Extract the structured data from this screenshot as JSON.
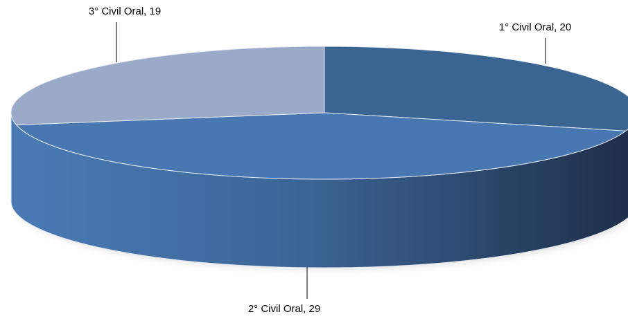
{
  "chart_data": {
    "type": "pie",
    "style": "3d",
    "title": "",
    "legend": "none",
    "categories": [
      "1° Civil Oral",
      "2° Civil Oral",
      "3° Civil Oral"
    ],
    "values": [
      20,
      29,
      19
    ],
    "data_labels": [
      "1° Civil Oral, 20",
      "2° Civil Oral, 29",
      "3° Civil Oral, 19"
    ],
    "colors": [
      "#3A6593",
      "#4877B1",
      "#9BAAC8"
    ]
  }
}
